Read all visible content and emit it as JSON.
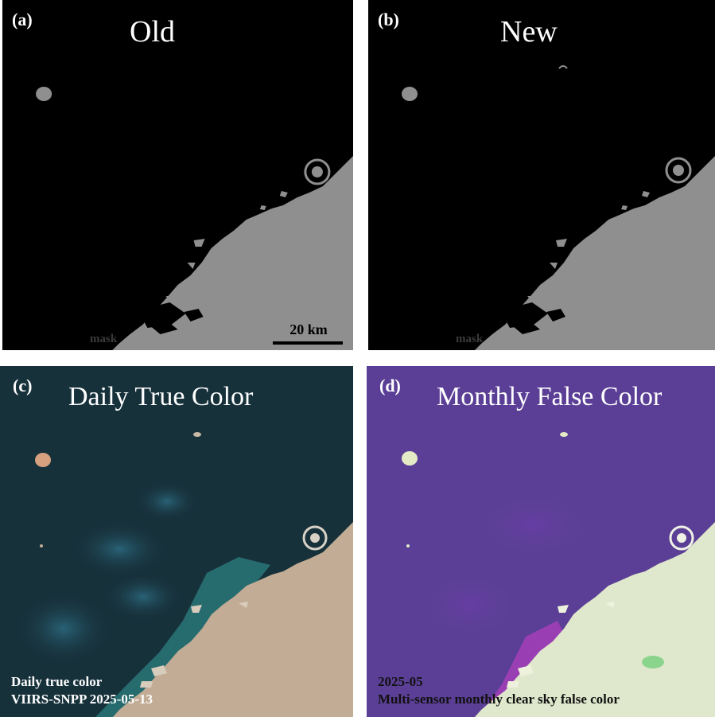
{
  "colors": {
    "mask_land": "#8f8f8f",
    "mask_water": "#000000",
    "true_water": "#17313b",
    "true_land": "#c3ac95",
    "false_water": "#5b3f96",
    "false_land": "#dfe8cc"
  },
  "panels": {
    "a": {
      "letter": "(a)",
      "title": "Old",
      "mask_label": "mask",
      "scalebar_label": "20 km"
    },
    "b": {
      "letter": "(b)",
      "title": "New",
      "mask_label": "mask"
    },
    "c": {
      "letter": "(c)",
      "title": "Daily True Color",
      "caption_line1": "Daily true color",
      "caption_line2": "VIIRS-SNPP 2025-05-13"
    },
    "d": {
      "letter": "(d)",
      "title": "Monthly False Color",
      "caption_line1": "2025-05",
      "caption_line2": "Multi-sensor monthly clear sky false color"
    }
  }
}
